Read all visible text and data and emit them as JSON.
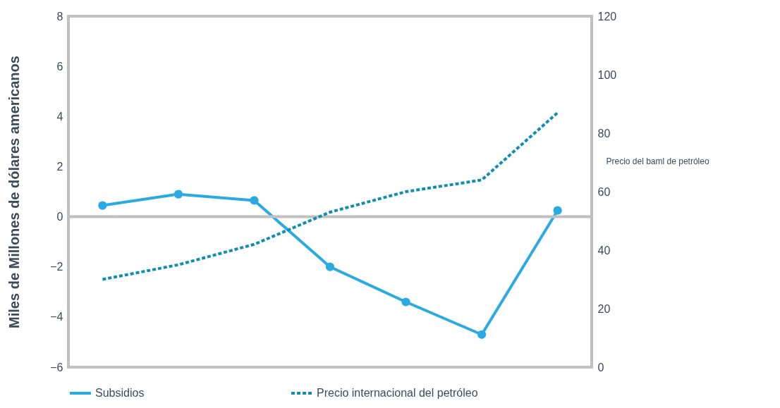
{
  "chart_data": {
    "type": "line",
    "ylabel": "Miles de Millones de dólares americanos",
    "y2label": "Precio del baml de petróleo",
    "categories": [
      null,
      null,
      null,
      null,
      null,
      null,
      null
    ],
    "series": [
      {
        "name": "Subsidios",
        "color": "#29abe2",
        "values": [
          0.45,
          0.9,
          0.65,
          -2,
          -3.4,
          -4.7,
          0.25
        ],
        "marker": "circle",
        "line_style": "solid"
      },
      {
        "name": "Precio internacional del petróleo",
        "color": "#0e8fb0",
        "values": [
          30,
          35,
          42,
          53,
          60,
          64,
          87
        ],
        "axis": "y2",
        "marker": "none",
        "line_style": "dotted"
      }
    ],
    "ylim": [
      -6,
      8
    ],
    "yticks": [
      -6,
      -4,
      -2,
      0,
      2,
      4,
      6,
      8
    ],
    "y2lim": [
      0,
      120
    ],
    "y2ticks": [
      0,
      20,
      40,
      60,
      80,
      100,
      120
    ],
    "ref_lines": [
      {
        "axis": "y",
        "value": 0,
        "color": "#bfbfbf"
      }
    ],
    "grid": false,
    "legend": "bottom"
  }
}
